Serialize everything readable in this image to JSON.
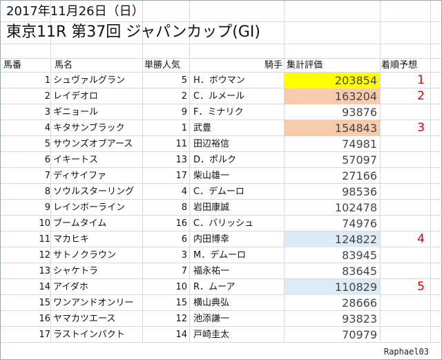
{
  "header": {
    "date_line": "2017年11月26日（日）",
    "race_line": "東京11R 第37回 ジャパンカップ(GI)"
  },
  "columns": {
    "no": "馬番",
    "name": "馬名",
    "popularity": "単勝人気",
    "jockey": "騎手",
    "score": "集計評価",
    "prediction": "着順予想"
  },
  "colors": {
    "highlight_yellow": "#ffff00",
    "highlight_peach": "#f8cbad",
    "highlight_blue": "#ddebf7",
    "prediction_red": "#e00000"
  },
  "rows": [
    {
      "no": "1",
      "name": "シュヴァルグラン",
      "pop": "5",
      "jockey": "H．ボウマン",
      "score": "203854",
      "pred": "1",
      "hl": "yellow"
    },
    {
      "no": "2",
      "name": "レイデオロ",
      "pop": "2",
      "jockey": "C．ルメール",
      "score": "163204",
      "pred": "2",
      "hl": "peach"
    },
    {
      "no": "3",
      "name": "ギニョール",
      "pop": "9",
      "jockey": "F．ミナリク",
      "score": "93876",
      "pred": "",
      "hl": ""
    },
    {
      "no": "4",
      "name": "キタサンブラック",
      "pop": "1",
      "jockey": "武豊",
      "score": "154843",
      "pred": "3",
      "hl": "peach"
    },
    {
      "no": "5",
      "name": "サウンズオブアース",
      "pop": "11",
      "jockey": "田辺裕信",
      "score": "74981",
      "pred": "",
      "hl": ""
    },
    {
      "no": "6",
      "name": "イキートス",
      "pop": "13",
      "jockey": "D．ポルク",
      "score": "57097",
      "pred": "",
      "hl": ""
    },
    {
      "no": "7",
      "name": "ディサイファ",
      "pop": "17",
      "jockey": "柴山雄一",
      "score": "27166",
      "pred": "",
      "hl": ""
    },
    {
      "no": "8",
      "name": "ソウルスターリング",
      "pop": "4",
      "jockey": "C．デムーロ",
      "score": "98536",
      "pred": "",
      "hl": ""
    },
    {
      "no": "9",
      "name": "レインボーライン",
      "pop": "8",
      "jockey": "岩田康誠",
      "score": "102478",
      "pred": "",
      "hl": ""
    },
    {
      "no": "10",
      "name": "ブームタイム",
      "pop": "16",
      "jockey": "C．バリッシュ",
      "score": "74976",
      "pred": "",
      "hl": ""
    },
    {
      "no": "11",
      "name": "マカヒキ",
      "pop": "6",
      "jockey": "内田博幸",
      "score": "124822",
      "pred": "4",
      "hl": "blue"
    },
    {
      "no": "12",
      "name": "サトノクラウン",
      "pop": "3",
      "jockey": "M．デムーロ",
      "score": "83945",
      "pred": "",
      "hl": ""
    },
    {
      "no": "13",
      "name": "シャケトラ",
      "pop": "7",
      "jockey": "福永祐一",
      "score": "83645",
      "pred": "",
      "hl": ""
    },
    {
      "no": "14",
      "name": "アイダホ",
      "pop": "10",
      "jockey": "R．ムーア",
      "score": "110829",
      "pred": "5",
      "hl": "blue"
    },
    {
      "no": "15",
      "name": "ワンアンドオンリー",
      "pop": "15",
      "jockey": "横山典弘",
      "score": "28666",
      "pred": "",
      "hl": ""
    },
    {
      "no": "16",
      "name": "ヤマカツエース",
      "pop": "12",
      "jockey": "池添謙一",
      "score": "93823",
      "pred": "",
      "hl": ""
    },
    {
      "no": "17",
      "name": "ラストインパクト",
      "pop": "14",
      "jockey": "戸崎圭太",
      "score": "70979",
      "pred": "",
      "hl": ""
    }
  ],
  "watermark": "Raphael03"
}
